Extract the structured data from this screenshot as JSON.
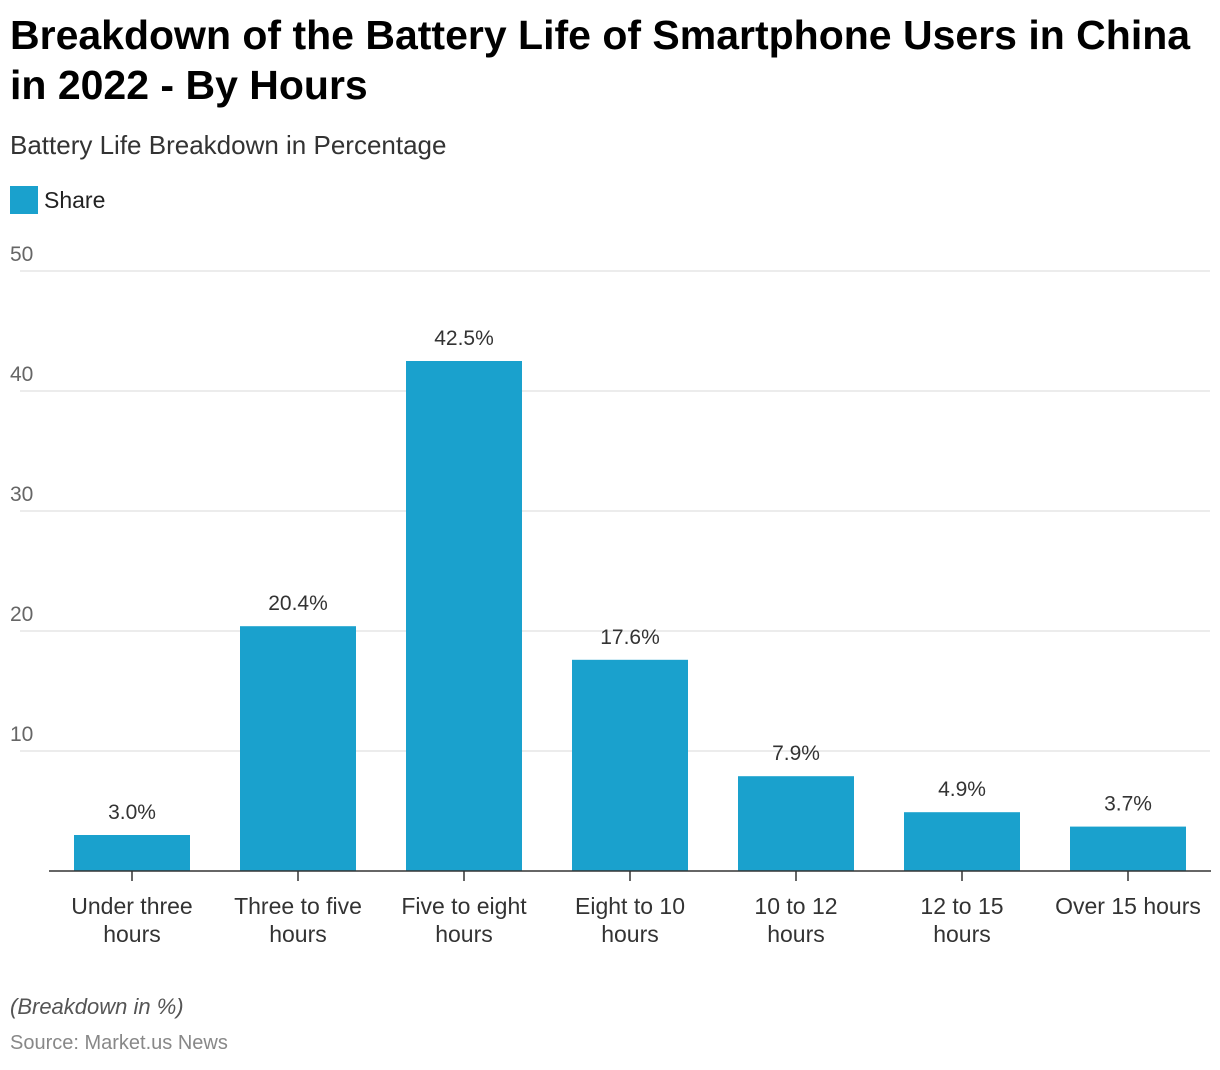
{
  "chart_data": {
    "type": "bar",
    "title": "Breakdown of the Battery Life of Smartphone Users in China in 2022 - By Hours",
    "subtitle": "Battery Life Breakdown in Percentage",
    "categories": [
      [
        "Under three",
        "hours"
      ],
      [
        "Three to five",
        "hours"
      ],
      [
        "Five to eight",
        "hours"
      ],
      [
        "Eight to 10",
        "hours"
      ],
      [
        "10 to 12",
        "hours"
      ],
      [
        "12 to 15",
        "hours"
      ],
      [
        "Over 15 hours"
      ]
    ],
    "series": [
      {
        "name": "Share",
        "values": [
          3.0,
          20.4,
          42.5,
          17.6,
          7.9,
          4.9,
          3.7
        ],
        "color": "#1aa1cd"
      }
    ],
    "data_labels": [
      "3.0%",
      "20.4%",
      "42.5%",
      "17.6%",
      "7.9%",
      "4.9%",
      "3.7%"
    ],
    "ylim": [
      0,
      50
    ],
    "yticks": [
      "10",
      "20",
      "30",
      "40",
      "50"
    ],
    "grid": true,
    "legend": "top-left",
    "note": "(Breakdown in %)",
    "source": "Source: Market.us News"
  }
}
